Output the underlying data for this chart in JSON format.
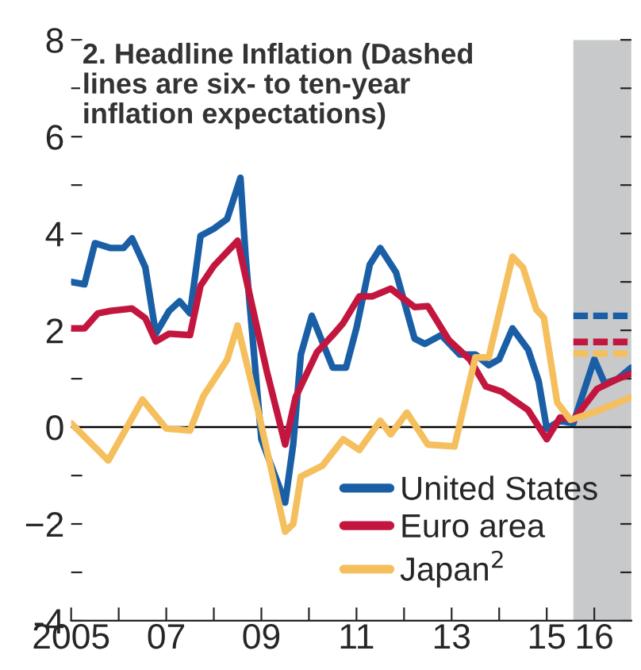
{
  "chart_data": {
    "type": "line",
    "title": "2. Headline Inflation (Dashed\nlines are six- to ten-year\ninflation expectations)",
    "xlim": [
      2005,
      2016.78
    ],
    "xticks": [
      2005,
      {
        "value": 2006,
        "label": null
      },
      {
        "value": 2007,
        "label": "07"
      },
      {
        "value": 2008,
        "label": null
      },
      {
        "value": 2009,
        "label": "09"
      },
      {
        "value": 2010,
        "label": null
      },
      {
        "value": 2011,
        "label": "11"
      },
      {
        "value": 2012,
        "label": null
      },
      {
        "value": 2013,
        "label": "13"
      },
      {
        "value": 2014,
        "label": null
      },
      {
        "value": 2015,
        "label": "15"
      },
      {
        "value": 2016,
        "label": "16"
      }
    ],
    "ylim": [
      -4,
      8
    ],
    "yticks": [
      -4,
      {
        "value": -3,
        "label": null
      },
      {
        "value": -2,
        "label": "−2"
      },
      {
        "value": -1,
        "label": null
      },
      0,
      {
        "value": 1,
        "label": null
      },
      2,
      {
        "value": 3,
        "label": null
      },
      4,
      {
        "value": 5,
        "label": null
      },
      6,
      {
        "value": 7,
        "label": null
      },
      8
    ],
    "legend": "bottom right",
    "grid": false,
    "series": [
      {
        "name": "United States",
        "color": "#1a5fa6",
        "x": [
          2005.0,
          2005.28,
          2005.5,
          2005.83,
          2006.1,
          2006.28,
          2006.56,
          2006.78,
          2007.06,
          2007.28,
          2007.5,
          2007.72,
          2008.0,
          2008.28,
          2008.56,
          2008.67,
          2009.0,
          2009.5,
          2009.67,
          2009.83,
          2010.06,
          2010.5,
          2010.78,
          2011.0,
          2011.28,
          2011.5,
          2011.83,
          2012.22,
          2012.44,
          2012.78,
          2013.17,
          2013.5,
          2013.78,
          2014.0,
          2014.28,
          2014.61,
          2014.83,
          2015.0,
          2015.28,
          2015.56,
          2016.0,
          2016.22,
          2016.5,
          2016.78
        ],
        "values": [
          3.0,
          2.95,
          3.8,
          3.7,
          3.7,
          3.9,
          3.3,
          1.93,
          2.4,
          2.6,
          2.35,
          3.95,
          4.1,
          4.3,
          5.15,
          3.5,
          -0.25,
          -1.56,
          -0.35,
          1.5,
          2.3,
          1.23,
          1.23,
          2.05,
          3.36,
          3.7,
          3.2,
          1.83,
          1.72,
          1.9,
          1.5,
          1.5,
          1.28,
          1.4,
          2.04,
          1.6,
          0.95,
          -0.03,
          0.13,
          0.08,
          1.4,
          0.9,
          1.0,
          1.23
        ]
      },
      {
        "name": "Euro area",
        "color": "#c3163f",
        "x": [
          2005.0,
          2005.28,
          2005.56,
          2005.83,
          2006.28,
          2006.56,
          2006.78,
          2007.06,
          2007.5,
          2007.72,
          2008.0,
          2008.5,
          2008.67,
          2009.11,
          2009.5,
          2009.72,
          2010.17,
          2010.5,
          2010.72,
          2011.06,
          2011.33,
          2011.72,
          2012.22,
          2012.5,
          2012.94,
          2013.39,
          2013.72,
          2014.06,
          2014.61,
          2015.0,
          2015.28,
          2015.56,
          2016.06,
          2016.5,
          2016.78
        ],
        "values": [
          2.04,
          2.04,
          2.35,
          2.4,
          2.45,
          2.25,
          1.77,
          1.93,
          1.9,
          2.92,
          3.33,
          3.85,
          3.1,
          1.17,
          -0.36,
          0.62,
          1.55,
          1.9,
          2.15,
          2.7,
          2.7,
          2.86,
          2.48,
          2.5,
          1.8,
          1.39,
          0.84,
          0.73,
          0.35,
          -0.25,
          0.2,
          0.15,
          0.79,
          1.0,
          1.1
        ]
      },
      {
        "name": "Japan$^{2}$",
        "color": "#f5bf5e",
        "x": [
          2005.0,
          2005.78,
          2006.5,
          2007.0,
          2007.5,
          2007.78,
          2008.28,
          2008.5,
          2008.94,
          2009.5,
          2009.67,
          2009.83,
          2010.28,
          2010.72,
          2011.06,
          2011.5,
          2011.72,
          2012.06,
          2012.5,
          2013.06,
          2013.5,
          2013.78,
          2014.28,
          2014.5,
          2014.78,
          2014.94,
          2015.22,
          2015.5,
          2016.06,
          2016.78
        ],
        "values": [
          0.08,
          -0.69,
          0.57,
          -0.03,
          -0.07,
          0.64,
          1.39,
          2.1,
          0.3,
          -2.16,
          -2.0,
          -1.02,
          -0.8,
          -0.25,
          -0.47,
          0.13,
          -0.15,
          0.3,
          -0.36,
          -0.4,
          1.44,
          1.44,
          3.52,
          3.3,
          2.43,
          2.26,
          0.51,
          0.15,
          0.33,
          0.62
        ]
      },
      {
        "color": "#1a5fa6",
        "line_style": "dashed",
        "x": [
          2015.56,
          2016.78
        ],
        "values": [
          2.3,
          2.3
        ]
      },
      {
        "color": "#c3163f",
        "line_style": "dashed",
        "x": [
          2015.56,
          2016.78
        ],
        "values": [
          1.76,
          1.76
        ]
      },
      {
        "color": "#f5bf5e",
        "line_style": "dashed",
        "x": [
          2015.56,
          2016.78
        ],
        "values": [
          1.52,
          1.52
        ]
      }
    ],
    "ref_lines": [
      {
        "axis": "y",
        "value": 0,
        "color": "#000000"
      }
    ],
    "bands": [
      {
        "axis": "x",
        "from": 2015.56,
        "to": 2016.78,
        "color": "#c8c9cb"
      }
    ]
  }
}
